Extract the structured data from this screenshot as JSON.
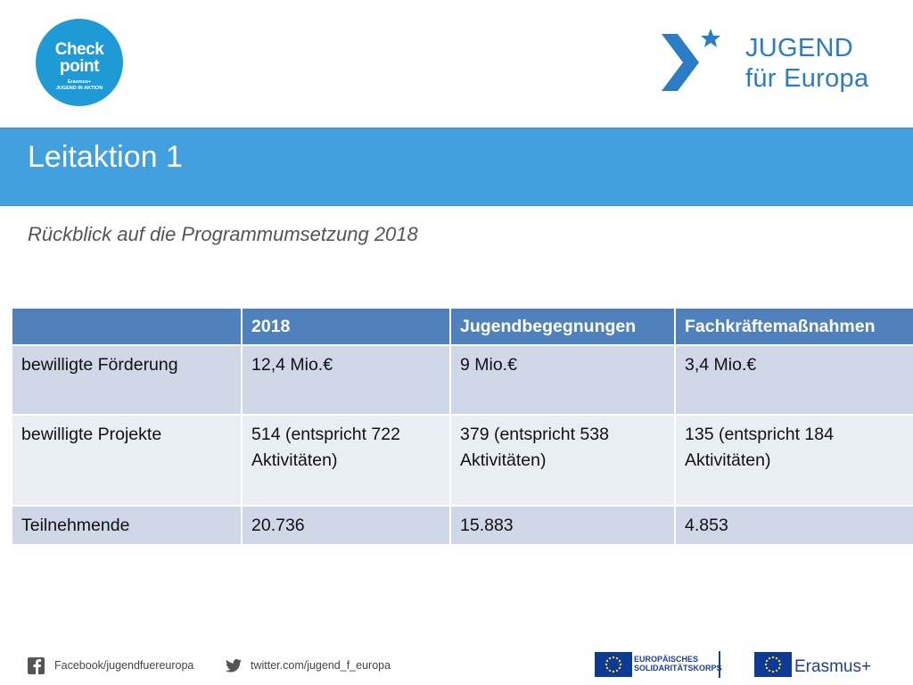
{
  "logos": {
    "checkpoint": {
      "line1": "Check",
      "line2": "point",
      "sub1": "Erasmus+",
      "sub2": "JUGEND IN AKTION"
    },
    "jugend_fuer_europa": {
      "line1": "JUGEND",
      "line2": "für Europa"
    }
  },
  "slide": {
    "title": "Leitaktion 1",
    "subtitle": "Rückblick auf die Programmumsetzung 2018"
  },
  "table": {
    "headers": [
      "",
      "2018",
      "Jugendbegegnungen",
      "Fachkräftemaßnahmen"
    ],
    "rows": [
      [
        "bewilligte Förderung",
        "12,4 Mio.€",
        "9 Mio.€",
        "3,4 Mio.€"
      ],
      [
        "bewilligte Projekte",
        "514 (entspricht 722 Aktivitäten)",
        "379 (entspricht 538 Aktivitäten)",
        "135 (entspricht 184 Aktivitäten)"
      ],
      [
        "Teilnehmende",
        "20.736",
        "15.883",
        "4.853"
      ]
    ]
  },
  "footer": {
    "facebook": "Facebook/jugendfuereuropa",
    "twitter": "twitter.com/jugend_f_europa",
    "esk_line1": "EUROPÄISCHES",
    "esk_line2": "SOLIDARITÄTSKORPS",
    "erasmus": "Erasmus+"
  },
  "colors": {
    "title_band": "#43a0de",
    "table_header": "#4f81bd",
    "row_dark": "#d0d8e8",
    "row_light": "#e9edf4",
    "brand_blue": "#2a7cc7",
    "eu_blue": "#0d3a96"
  },
  "icons": [
    "facebook-icon",
    "twitter-icon",
    "eu-flag-icon",
    "jugend-fuer-europa-mark-icon"
  ]
}
